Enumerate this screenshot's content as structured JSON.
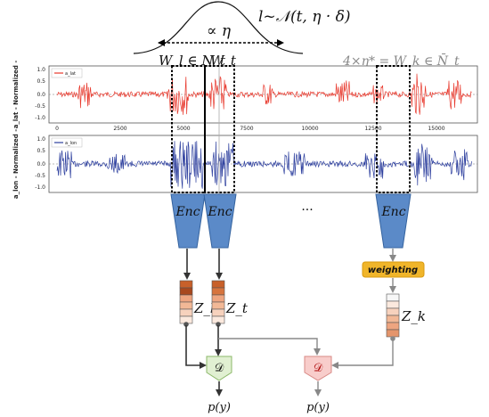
{
  "gaussian": {
    "formula": "l~𝒩(t, η · δ)",
    "width_label": "∝ η"
  },
  "windows": {
    "wl": "W_l ∈ N_t",
    "wt": "W_t",
    "wk": "4×η* = W_k ∈ N̄_t"
  },
  "plot_top": {
    "legend": "a_lat",
    "ylabel": "a_lat - Normalized -",
    "yticks": [
      "1.0",
      "0.5",
      "0.0",
      "-0.5",
      "-1.0"
    ],
    "xticks": [
      "0",
      "2500",
      "5000",
      "7500",
      "10000",
      "12500",
      "15000"
    ],
    "color": "#e8392d"
  },
  "plot_bottom": {
    "legend": "a_lon",
    "ylabel": "a_lon - Normalized -",
    "yticks": [
      "1.0",
      "0.5",
      "0.0",
      "-0.5",
      "-1.0"
    ],
    "color": "#2d3f9e"
  },
  "encoders": [
    "Enc",
    "Enc",
    "Enc"
  ],
  "ellipsis": "···",
  "weighting_label": "weighting",
  "latents": {
    "zl": "Z_l",
    "zt": "Z_t",
    "zk": "Z_k"
  },
  "discriminators": {
    "d1": "𝒟",
    "d2": "𝒟"
  },
  "outputs": {
    "p1": "p(y)",
    "p2": "p(y)"
  },
  "colors": {
    "encoder": "#5b8ac8",
    "weighting": "#f0b52a",
    "disc_green": "#e1f0d2",
    "disc_red": "#f8cdcb"
  }
}
